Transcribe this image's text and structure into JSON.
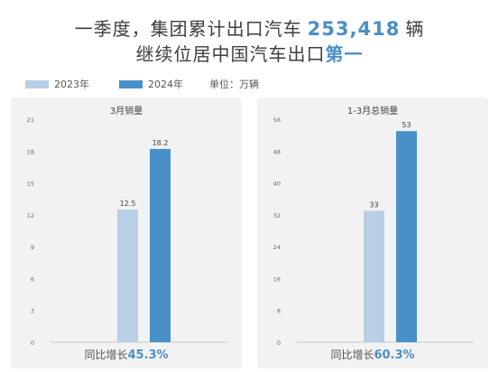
{
  "header": {
    "line1_prefix": "一季度，集团累计出口汽车",
    "line1_number": "253,418",
    "line1_suffix": "辆",
    "line2_prefix": "继续位居中国汽车出口",
    "line2_highlight": "第一"
  },
  "legend": {
    "items": [
      {
        "label": "2023年",
        "color": "#b8cfe6"
      },
      {
        "label": "2024年",
        "color": "#4a90c8"
      }
    ],
    "unit": "单位：万辆"
  },
  "colors": {
    "accent": "#4a8fc7",
    "bar_2023": "#b8cfe6",
    "bar_2024": "#4a90c8",
    "panel_bg": "#f2f2f2"
  },
  "chart_data": [
    {
      "type": "bar",
      "title": "3月销量",
      "categories": [
        "2023年",
        "2024年"
      ],
      "values": [
        12.5,
        18.2
      ],
      "value_labels": [
        "12.5",
        "18.2"
      ],
      "ylim": [
        0,
        21
      ],
      "yticks": [
        0,
        3,
        6,
        9,
        12,
        15,
        18,
        21
      ],
      "yoy_label": "同比增长",
      "yoy_value": "45.3%",
      "grid": false
    },
    {
      "type": "bar",
      "title": "1-3月总销量",
      "categories": [
        "2023年",
        "2024年"
      ],
      "values": [
        33,
        53
      ],
      "value_labels": [
        "33",
        "53"
      ],
      "ylim": [
        0,
        56
      ],
      "yticks": [
        0,
        8,
        16,
        24,
        32,
        40,
        48,
        56
      ],
      "yoy_label": "同比增长",
      "yoy_value": "60.3%",
      "grid": false
    }
  ]
}
